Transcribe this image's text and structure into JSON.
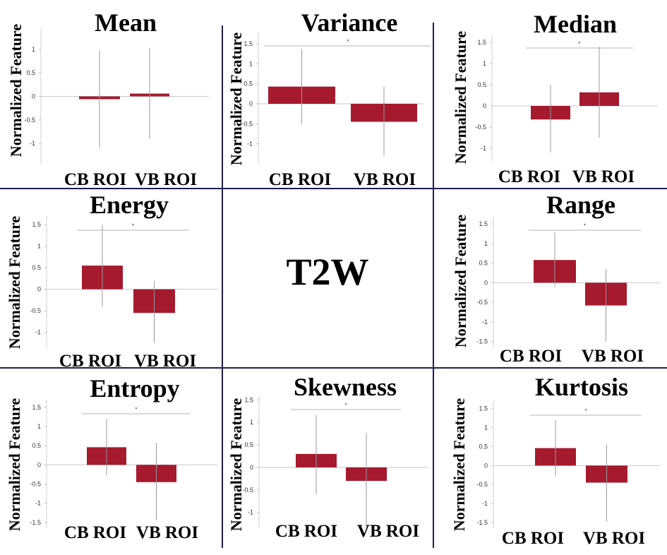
{
  "figure": {
    "center_label": "T2W",
    "bar_color": "#a51a2f",
    "error_bar_color": "#9a9a9a",
    "divider_color": "#1b1f4d"
  },
  "chart_data": [
    {
      "type": "bar",
      "title": "Mean",
      "ylabel": "Normalized Feature",
      "categories": [
        "CB ROI",
        "VB ROI"
      ],
      "values": [
        -0.06,
        0.06
      ],
      "error_low": [
        -1.1,
        -0.9
      ],
      "error_high": [
        0.98,
        1.03
      ],
      "yticks": [
        "1",
        "0.5",
        "0",
        "-0.5",
        "-1"
      ],
      "ytick_values": [
        1,
        0.5,
        0,
        -0.5,
        -1
      ],
      "ylim": [
        -1.45,
        1.45
      ],
      "significance": ""
    },
    {
      "type": "bar",
      "title": "Variance",
      "ylabel": "Normalized Feature",
      "categories": [
        "CB ROI",
        "VB ROI"
      ],
      "values": [
        0.43,
        -0.45
      ],
      "error_low": [
        -0.5,
        -1.3
      ],
      "error_high": [
        1.37,
        0.43
      ],
      "yticks": [
        "1.5",
        "1",
        "0.5",
        "0",
        "-0.5",
        "-1"
      ],
      "ytick_values": [
        1.5,
        1,
        0.5,
        0,
        -0.5,
        -1
      ],
      "ylim": [
        -1.5,
        1.8
      ],
      "significance": "*"
    },
    {
      "type": "bar",
      "title": "Median",
      "ylabel": "Normalized Feature",
      "categories": [
        "CB ROI",
        "VB ROI"
      ],
      "values": [
        -0.32,
        0.32
      ],
      "error_low": [
        -1.1,
        -0.75
      ],
      "error_high": [
        0.5,
        1.4
      ],
      "yticks": [
        "1.5",
        "1",
        "0.5",
        "0",
        "-0.5",
        "-1"
      ],
      "ytick_values": [
        1.5,
        1,
        0.5,
        0,
        -0.5,
        -1
      ],
      "ylim": [
        -1.3,
        1.7
      ],
      "significance": "*"
    },
    {
      "type": "bar",
      "title": "Energy",
      "ylabel": "Normalized Feature",
      "categories": [
        "CB ROI",
        "VB ROI"
      ],
      "values": [
        0.55,
        -0.55
      ],
      "error_low": [
        -0.4,
        -1.25
      ],
      "error_high": [
        1.5,
        0.2
      ],
      "yticks": [
        "1.5",
        "1",
        "0.5",
        "0",
        "-0.5",
        "-1"
      ],
      "ytick_values": [
        1.5,
        1,
        0.5,
        0,
        -0.5,
        -1
      ],
      "ylim": [
        -1.35,
        1.7
      ],
      "significance": "*"
    },
    {
      "type": "bar",
      "title": "Range",
      "ylabel": "Normalized Feature",
      "categories": [
        "CB ROI",
        "VB ROI"
      ],
      "values": [
        0.58,
        -0.58
      ],
      "error_low": [
        -0.1,
        -1.5
      ],
      "error_high": [
        1.28,
        0.35
      ],
      "yticks": [
        "1.5",
        "1",
        "0.5",
        "0",
        "-0.5",
        "-1",
        "-1.5"
      ],
      "ytick_values": [
        1.5,
        1,
        0.5,
        0,
        -0.5,
        -1,
        -1.5
      ],
      "ylim": [
        -1.65,
        1.7
      ],
      "significance": "*"
    },
    {
      "type": "bar",
      "title": "Entropy",
      "ylabel": "Normalized Feature",
      "categories": [
        "CB ROI",
        "VB ROI"
      ],
      "values": [
        0.46,
        -0.45
      ],
      "error_low": [
        -0.27,
        -1.45
      ],
      "error_high": [
        1.2,
        0.57
      ],
      "yticks": [
        "1.5",
        "1",
        "0.5",
        "0",
        "-0.5",
        "-1",
        "-1.5"
      ],
      "ytick_values": [
        1.5,
        1,
        0.5,
        0,
        -0.5,
        -1,
        -1.5
      ],
      "ylim": [
        -1.65,
        1.7
      ],
      "significance": "*"
    },
    {
      "type": "bar",
      "title": "Skewness",
      "ylabel": "Normalized Feature",
      "categories": [
        "CB ROI",
        "VB ROI"
      ],
      "values": [
        0.3,
        -0.3
      ],
      "error_low": [
        -0.6,
        -1.35
      ],
      "error_high": [
        1.17,
        0.77
      ],
      "yticks": [
        "1.5",
        "1",
        "0.5",
        "0",
        "-0.5",
        "-1"
      ],
      "ytick_values": [
        1.5,
        1,
        0.5,
        0,
        -0.5,
        -1
      ],
      "ylim": [
        -1.35,
        1.6
      ],
      "significance": "*"
    },
    {
      "type": "bar",
      "title": "Kurtosis",
      "ylabel": "Normalized Feature",
      "categories": [
        "CB ROI",
        "VB ROI"
      ],
      "values": [
        0.46,
        -0.45
      ],
      "error_low": [
        -0.28,
        -1.47
      ],
      "error_high": [
        1.2,
        0.55
      ],
      "yticks": [
        "1.5",
        "1",
        "0.5",
        "0",
        "-0.5",
        "-1",
        "-1.5"
      ],
      "ytick_values": [
        1.5,
        1,
        0.5,
        0,
        -0.5,
        -1,
        -1.5
      ],
      "ylim": [
        -1.65,
        1.7
      ],
      "significance": "*"
    }
  ]
}
